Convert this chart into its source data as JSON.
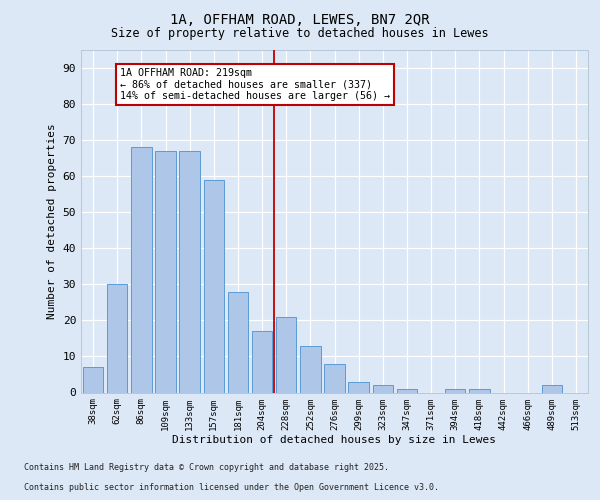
{
  "title_line1": "1A, OFFHAM ROAD, LEWES, BN7 2QR",
  "title_line2": "Size of property relative to detached houses in Lewes",
  "xlabel": "Distribution of detached houses by size in Lewes",
  "ylabel": "Number of detached properties",
  "categories": [
    "38sqm",
    "62sqm",
    "86sqm",
    "109sqm",
    "133sqm",
    "157sqm",
    "181sqm",
    "204sqm",
    "228sqm",
    "252sqm",
    "276sqm",
    "299sqm",
    "323sqm",
    "347sqm",
    "371sqm",
    "394sqm",
    "418sqm",
    "442sqm",
    "466sqm",
    "489sqm",
    "513sqm"
  ],
  "values": [
    7,
    30,
    68,
    67,
    67,
    59,
    28,
    17,
    21,
    13,
    8,
    3,
    2,
    1,
    0,
    1,
    1,
    0,
    0,
    2,
    0
  ],
  "bar_color": "#aec6e8",
  "bar_edge_color": "#5b9bd5",
  "vline_x": 7.5,
  "vline_color": "#c00000",
  "annotation_text": "1A OFFHAM ROAD: 219sqm\n← 86% of detached houses are smaller (337)\n14% of semi-detached houses are larger (56) →",
  "annotation_box_color": "#ffffff",
  "annotation_box_edge": "#c00000",
  "ylim": [
    0,
    95
  ],
  "yticks": [
    0,
    10,
    20,
    30,
    40,
    50,
    60,
    70,
    80,
    90
  ],
  "background_color": "#dce8f5",
  "grid_color": "#ffffff",
  "footer_line1": "Contains HM Land Registry data © Crown copyright and database right 2025.",
  "footer_line2": "Contains public sector information licensed under the Open Government Licence v3.0."
}
